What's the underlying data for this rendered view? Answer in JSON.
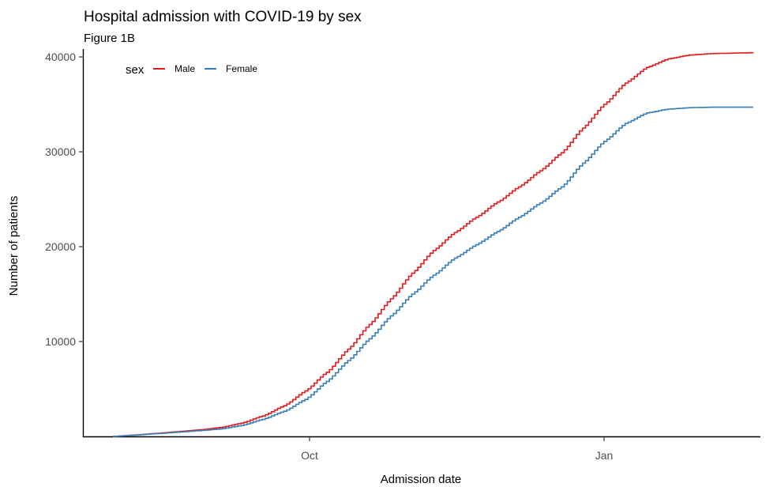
{
  "chart_data": {
    "type": "line",
    "title": "Hospital admission with COVID-19 by sex",
    "subtitle": "Figure 1B",
    "xlabel": "Admission date",
    "ylabel": "Number of patients",
    "x_ticks": [
      "Oct",
      "Jan"
    ],
    "y_ticks": [
      "10000",
      "20000",
      "30000",
      "40000"
    ],
    "ylim": [
      0,
      40000
    ],
    "grid": false,
    "legend": {
      "title": "sex",
      "position": "top-left"
    },
    "x": [
      "Aug 3",
      "Aug 10",
      "Aug 17",
      "Aug 24",
      "Aug 31",
      "Sep 7",
      "Sep 14",
      "Sep 21",
      "Sep 28",
      "Oct 5",
      "Oct 12",
      "Oct 19",
      "Oct 26",
      "Nov 2",
      "Nov 9",
      "Nov 16",
      "Nov 23",
      "Nov 30",
      "Dec 7",
      "Dec 14",
      "Dec 21",
      "Dec 28",
      "Jan 4",
      "Jan 11",
      "Jan 18",
      "Jan 25",
      "Feb 1",
      "Feb 8",
      "Feb 15",
      "Feb 22",
      "Mar 1"
    ],
    "series": [
      {
        "name": "Male",
        "color": "#e41a1c",
        "values": [
          0,
          150,
          320,
          500,
          680,
          930,
          1400,
          2150,
          3230,
          4800,
          6760,
          9200,
          11800,
          14500,
          17200,
          19600,
          21500,
          23100,
          24700,
          26300,
          28000,
          29900,
          32500,
          35000,
          37250,
          38900,
          39800,
          40200,
          40350,
          40400,
          40450
        ]
      },
      {
        "name": "Female",
        "color": "#377eb8",
        "values": [
          0,
          130,
          290,
          440,
          600,
          780,
          1150,
          1800,
          2650,
          3900,
          5800,
          8000,
          10300,
          12700,
          15000,
          17000,
          18800,
          20200,
          21600,
          23100,
          24600,
          26300,
          28800,
          31100,
          33000,
          34100,
          34500,
          34650,
          34700,
          34700,
          34700
        ]
      }
    ]
  }
}
